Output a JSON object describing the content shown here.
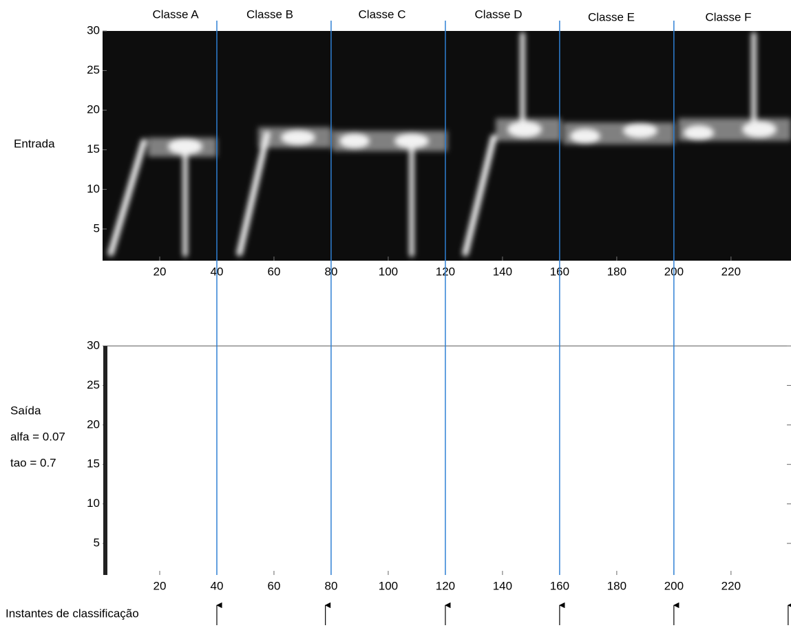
{
  "chart_data": [
    {
      "type": "heatmap",
      "colormap": "gray",
      "y_label": "Entrada",
      "xlim": [
        0,
        241
      ],
      "ylim": [
        1,
        30
      ],
      "xticks": [
        20,
        40,
        60,
        80,
        100,
        120,
        140,
        160,
        180,
        200,
        220
      ],
      "yticks": [
        5,
        10,
        15,
        20,
        25,
        30
      ]
    },
    {
      "type": "heatmap",
      "colormap": "gray-inverted",
      "y_label": [
        "Saída",
        "alfa = 0.07",
        "tao = 0.7"
      ],
      "xlim": [
        0,
        241
      ],
      "ylim": [
        1,
        30
      ],
      "xticks": [
        20,
        40,
        60,
        80,
        100,
        120,
        140,
        160,
        180,
        200,
        220
      ],
      "yticks": [
        5,
        10,
        15,
        20,
        25,
        30
      ]
    }
  ],
  "annotations": {
    "class_labels": [
      "Classe A",
      "Classe B",
      "Classe C",
      "Classe D",
      "Classe E",
      "Classe F"
    ],
    "class_boundaries": [
      40,
      80,
      120,
      160,
      200
    ],
    "boundary_color": "#2f80d4",
    "classification_label": "Instantes de classificação",
    "classification_instants": [
      40,
      78,
      120,
      160,
      200,
      240
    ]
  }
}
